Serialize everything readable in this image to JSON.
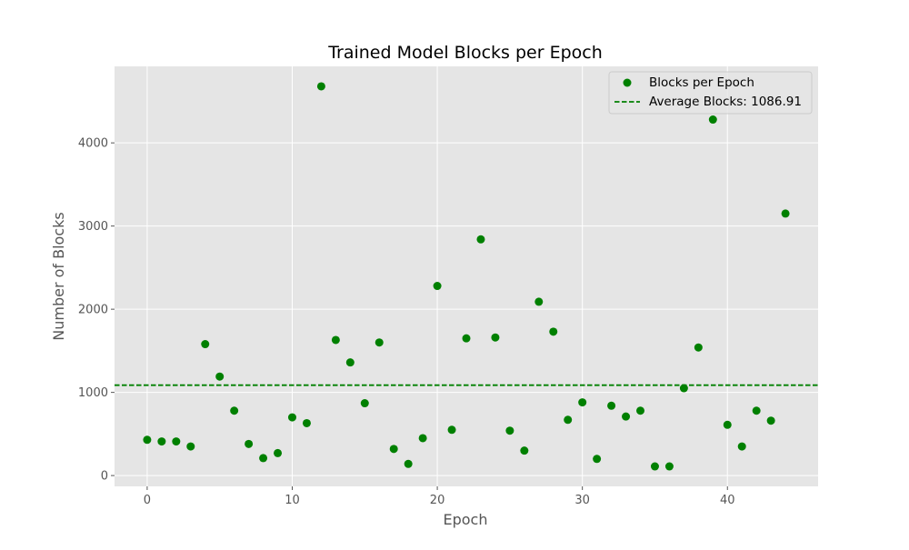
{
  "chart_data": {
    "type": "scatter",
    "title": "Trained Model Blocks per Epoch",
    "xlabel": "Epoch",
    "ylabel": "Number of Blocks",
    "xlim": [
      -2.25,
      46.25
    ],
    "ylim": [
      -130,
      4920
    ],
    "xticks": [
      0,
      10,
      20,
      30,
      40
    ],
    "yticks": [
      0,
      1000,
      2000,
      3000,
      4000
    ],
    "grid": true,
    "legend_position": "top-right",
    "series": [
      {
        "name": "Blocks per Epoch",
        "color": "#008000",
        "x": [
          0,
          1,
          2,
          3,
          4,
          5,
          6,
          7,
          8,
          9,
          10,
          11,
          12,
          13,
          14,
          15,
          16,
          17,
          18,
          19,
          20,
          21,
          22,
          23,
          24,
          25,
          26,
          27,
          28,
          29,
          30,
          31,
          32,
          33,
          34,
          35,
          36,
          37,
          38,
          39,
          40,
          41,
          42,
          43,
          44
        ],
        "y": [
          430,
          410,
          410,
          350,
          1580,
          1190,
          780,
          380,
          210,
          270,
          700,
          630,
          4680,
          1630,
          1360,
          870,
          1600,
          320,
          140,
          450,
          2280,
          550,
          1650,
          2840,
          1660,
          540,
          300,
          2090,
          1730,
          670,
          880,
          200,
          840,
          710,
          780,
          110,
          110,
          1050,
          1540,
          4280,
          610,
          350,
          780,
          660,
          3150
        ]
      }
    ],
    "reference_line": {
      "label": "Average Blocks: 1086.91",
      "value": 1086.91,
      "color": "#008000",
      "style": "dashed"
    }
  }
}
